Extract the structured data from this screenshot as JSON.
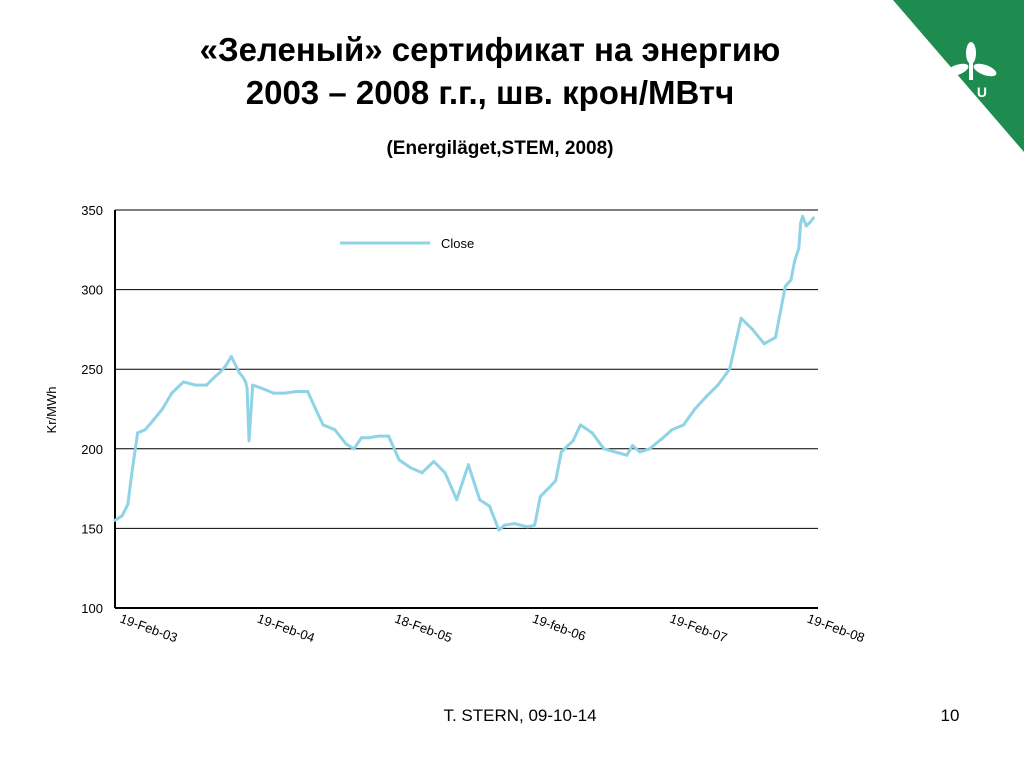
{
  "slide": {
    "title_line1": "«Зеленый» сертификат на энергию",
    "title_line2": "2003 – 2008 г.г., шв. крон/МВтч",
    "subtitle": "(Energiläget,STEM, 2008)",
    "footer": "T. STERN, 09-10-14",
    "page_number": "10",
    "logo_text": "SLU",
    "logo_color": "#1e8c4e"
  },
  "chart_data": {
    "type": "line",
    "ylabel": "Kr/MWh",
    "ylim": [
      100,
      350
    ],
    "yticks": [
      100,
      150,
      200,
      250,
      300,
      350
    ],
    "xlim": [
      "2003-02-19",
      "2008-04-01"
    ],
    "xticks": [
      {
        "date": "2003-02-19",
        "label": "19-Feb-03"
      },
      {
        "date": "2004-02-19",
        "label": "19-Feb-04"
      },
      {
        "date": "2005-02-18",
        "label": "18-Feb-05"
      },
      {
        "date": "2006-02-19",
        "label": "19-feb-06"
      },
      {
        "date": "2007-02-19",
        "label": "19-Feb-07"
      },
      {
        "date": "2008-02-19",
        "label": "19-Feb-08"
      }
    ],
    "grid": "horizontal",
    "legend": "top-left",
    "color": "#8fd3e6",
    "series": [
      {
        "name": "Close",
        "x": [
          "2003-02-19",
          "2003-03-10",
          "2003-03-25",
          "2003-04-05",
          "2003-04-20",
          "2003-05-10",
          "2003-06-01",
          "2003-06-25",
          "2003-07-20",
          "2003-08-20",
          "2003-09-20",
          "2003-10-20",
          "2003-11-10",
          "2003-11-25",
          "2003-12-10",
          "2003-12-25",
          "2004-01-15",
          "2004-01-25",
          "2004-02-01",
          "2004-02-05",
          "2004-02-10",
          "2004-02-20",
          "2004-03-15",
          "2004-04-15",
          "2004-05-15",
          "2004-06-15",
          "2004-07-15",
          "2004-08-05",
          "2004-08-25",
          "2004-09-25",
          "2004-10-25",
          "2004-11-15",
          "2004-12-05",
          "2004-12-25",
          "2005-01-20",
          "2005-02-15",
          "2005-03-15",
          "2005-04-15",
          "2005-05-15",
          "2005-06-15",
          "2005-07-15",
          "2005-08-15",
          "2005-09-15",
          "2005-10-15",
          "2005-11-10",
          "2005-12-05",
          "2005-12-20",
          "2006-01-15",
          "2006-02-01",
          "2006-02-20",
          "2006-03-10",
          "2006-03-25",
          "2006-04-15",
          "2006-05-05",
          "2006-05-20",
          "2006-06-20",
          "2006-07-10",
          "2006-08-10",
          "2006-09-10",
          "2006-10-10",
          "2006-11-10",
          "2006-11-25",
          "2006-12-15",
          "2007-01-10",
          "2007-01-25",
          "2007-02-10",
          "2007-03-10",
          "2007-04-10",
          "2007-05-10",
          "2007-06-10",
          "2007-07-10",
          "2007-08-10",
          "2007-09-10",
          "2007-10-10",
          "2007-11-10",
          "2007-12-10",
          "2008-01-05",
          "2008-01-20",
          "2008-01-30",
          "2008-02-10",
          "2008-02-15",
          "2008-02-20",
          "2008-03-01",
          "2008-03-10",
          "2008-03-20"
        ],
        "values": [
          155,
          158,
          165,
          185,
          210,
          212,
          218,
          225,
          235,
          242,
          240,
          240,
          245,
          248,
          252,
          258,
          248,
          245,
          242,
          238,
          205,
          240,
          238,
          235,
          235,
          236,
          236,
          225,
          215,
          212,
          203,
          200,
          207,
          207,
          208,
          208,
          193,
          188,
          185,
          192,
          185,
          168,
          190,
          168,
          164,
          149,
          152,
          153,
          152,
          151,
          152,
          170,
          175,
          180,
          198,
          205,
          215,
          210,
          200,
          198,
          196,
          202,
          198,
          200,
          203,
          206,
          212,
          215,
          225,
          233,
          240,
          250,
          282,
          275,
          266,
          270,
          302,
          306,
          318,
          326,
          342,
          346,
          340,
          342,
          345
        ]
      }
    ]
  }
}
